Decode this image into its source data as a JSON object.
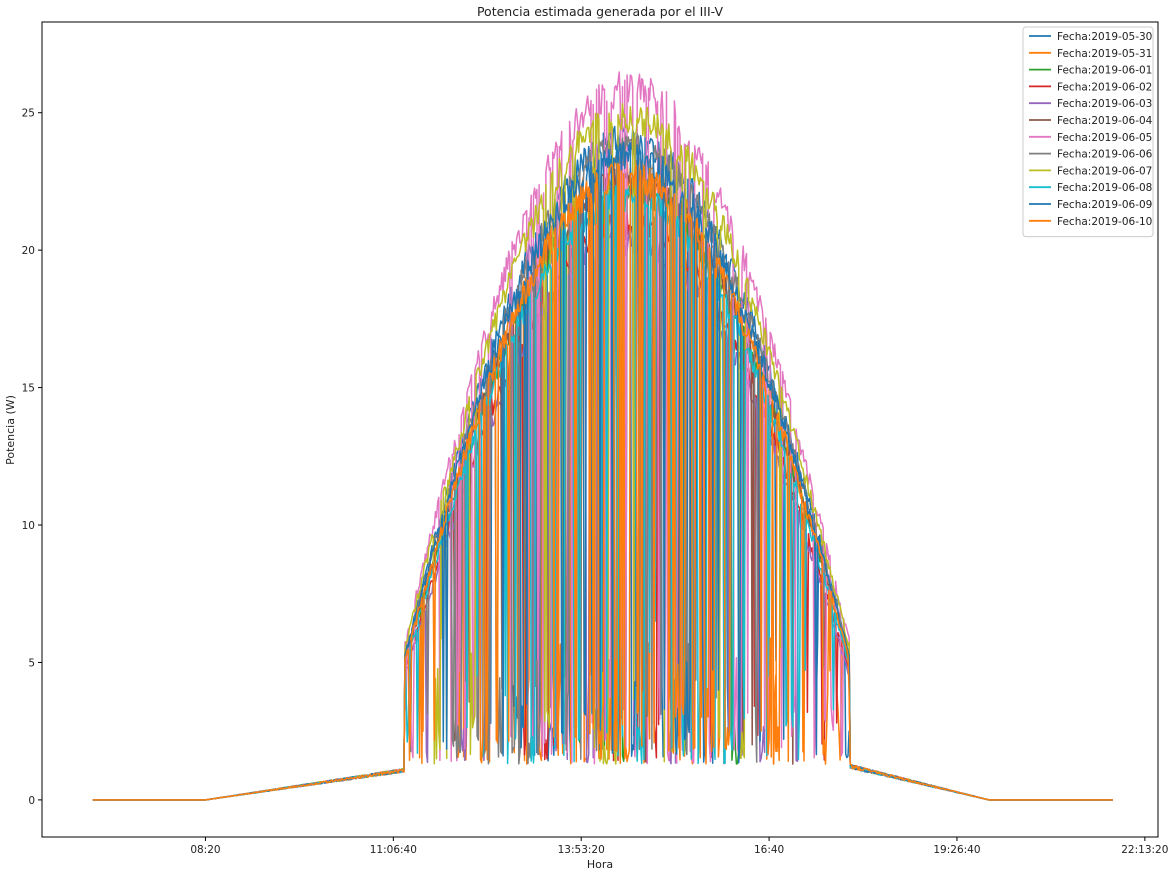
{
  "chart_data": {
    "type": "line",
    "title": "Potencia estimada generada por el III-V",
    "xlabel": "Hora",
    "ylabel": "Potencia (W)",
    "x_unit": "seconds since midnight",
    "xlim": [
      21300,
      80700
    ],
    "ylim": [
      -1.35,
      28.3
    ],
    "x_ticks": [
      {
        "value": 30000,
        "label": "08:20"
      },
      {
        "value": 40000,
        "label": "11:06:40"
      },
      {
        "value": 50000,
        "label": "13:53:20"
      },
      {
        "value": 60000,
        "label": "16:40"
      },
      {
        "value": 70000,
        "label": "19:26:40"
      },
      {
        "value": 80000,
        "label": "22:13:20"
      }
    ],
    "y_ticks": [
      0,
      5,
      10,
      15,
      20,
      25
    ],
    "grid": false,
    "legend_position": "top-right",
    "x_start": 24000,
    "x_end": 78300,
    "series": [
      {
        "name": "Fecha:2019-05-30",
        "color": "#1f77b4",
        "peak": 24.1,
        "cloud": 0.18,
        "seed": 11
      },
      {
        "name": "Fecha:2019-05-31",
        "color": "#ff7f0e",
        "peak": 23.0,
        "cloud": 0.45,
        "seed": 23
      },
      {
        "name": "Fecha:2019-06-01",
        "color": "#2ca02c",
        "peak": 22.3,
        "cloud": 0.12,
        "seed": 37
      },
      {
        "name": "Fecha:2019-06-02",
        "color": "#d62728",
        "peak": 21.0,
        "cloud": 0.3,
        "seed": 41
      },
      {
        "name": "Fecha:2019-06-03",
        "color": "#9467bd",
        "peak": 20.4,
        "cloud": 0.22,
        "seed": 53
      },
      {
        "name": "Fecha:2019-06-04",
        "color": "#8c564b",
        "peak": 22.6,
        "cloud": 0.1,
        "seed": 67
      },
      {
        "name": "Fecha:2019-06-05",
        "color": "#e377c2",
        "peak": 26.0,
        "cloud": 0.55,
        "seed": 71
      },
      {
        "name": "Fecha:2019-06-06",
        "color": "#7f7f7f",
        "peak": 23.8,
        "cloud": 0.35,
        "seed": 83
      },
      {
        "name": "Fecha:2019-06-07",
        "color": "#bcbd22",
        "peak": 25.0,
        "cloud": 0.2,
        "seed": 97
      },
      {
        "name": "Fecha:2019-06-08",
        "color": "#17becf",
        "peak": 22.0,
        "cloud": 0.5,
        "seed": 101
      },
      {
        "name": "Fecha:2019-06-09",
        "color": "#1f77b4",
        "peak": 23.5,
        "cloud": 0.28,
        "seed": 113
      },
      {
        "name": "Fecha:2019-06-10",
        "color": "#ff7f0e",
        "peak": 22.8,
        "cloud": 0.4,
        "seed": 127
      }
    ]
  }
}
